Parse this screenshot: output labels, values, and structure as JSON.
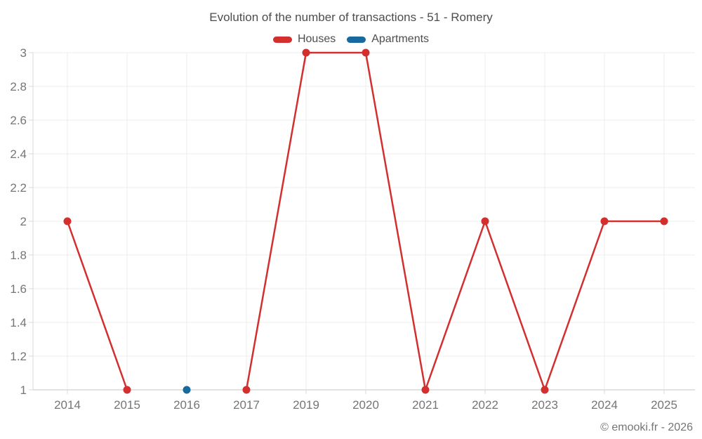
{
  "header": {
    "title": "Evolution of the number of transactions - 51 - Romery"
  },
  "legend": {
    "items": [
      {
        "label": "Houses",
        "color": "#d32f2f"
      },
      {
        "label": "Apartments",
        "color": "#17699e"
      }
    ]
  },
  "footer": {
    "copyright": "© emooki.fr - 2026"
  },
  "chart_data": {
    "type": "line",
    "title": "Evolution of the number of transactions - 51 - Romery",
    "categories": [
      "2014",
      "2015",
      "2016",
      "2017",
      "2019",
      "2020",
      "2021",
      "2022",
      "2023",
      "2024",
      "2025"
    ],
    "series": [
      {
        "name": "Houses",
        "color": "#d32f2f",
        "values": [
          2,
          1,
          null,
          1,
          3,
          3,
          1,
          2,
          1,
          2,
          2
        ]
      },
      {
        "name": "Apartments",
        "color": "#17699e",
        "values": [
          null,
          null,
          1,
          null,
          null,
          null,
          null,
          null,
          null,
          null,
          null
        ]
      }
    ],
    "xlabel": "",
    "ylabel": "",
    "ylim": [
      1,
      3
    ],
    "ytick_step": 0.2,
    "ytick_labels": [
      "1",
      "1.2",
      "1.4",
      "1.6",
      "1.8",
      "2",
      "2.2",
      "2.4",
      "2.6",
      "2.8",
      "3"
    ],
    "grid": true,
    "legend_position": "top",
    "note_missing_x": "2018 absent from axis; Houses has no 2016 value (line gap)"
  }
}
